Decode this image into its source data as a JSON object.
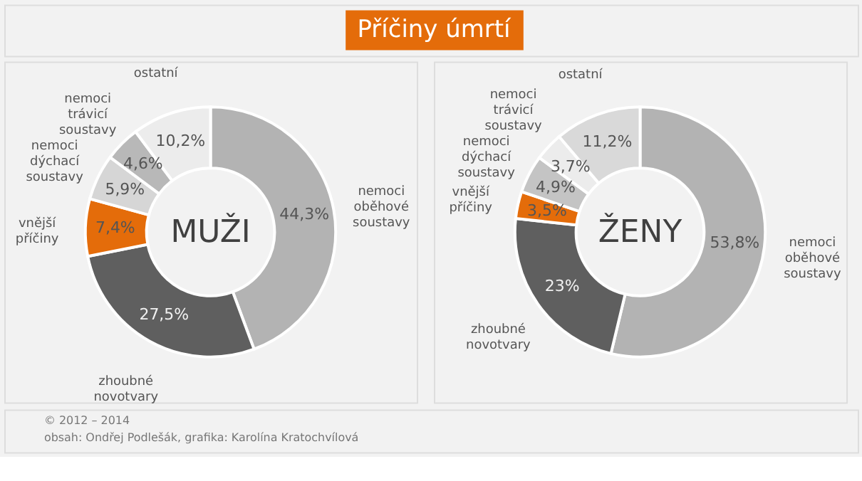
{
  "chart_data": [
    {
      "type": "donut",
      "title": "MUŽI",
      "categories": [
        "nemoci oběhové soustavy",
        "zhoubné novotvary",
        "vnější příčiny",
        "nemoci dýchací soustavy",
        "nemoci trávicí soustavy",
        "ostatní"
      ],
      "values": [
        44.3,
        27.5,
        7.4,
        5.9,
        4.6,
        10.2
      ],
      "value_labels": [
        "44,3%",
        "27,5%",
        "7,4%",
        "5,9%",
        "4,6%",
        "10,2%"
      ],
      "colors": [
        "#b3b3b3",
        "#5f5f5f",
        "#e46c0a",
        "#d6d6d6",
        "#b8b8b8",
        "#ececec"
      ],
      "annotations": [
        "Příčiny úmrtí",
        "© 2012 – 2014",
        "obsah: Ondřej Podlešák, grafika: Karolína Kratochvílová"
      ]
    },
    {
      "type": "donut",
      "title": "ŽENY",
      "categories": [
        "nemoci oběhové soustavy",
        "zhoubné novotvary",
        "vnější příčiny",
        "nemoci dýchací soustavy",
        "nemoci trávicí soustavy",
        "ostatní"
      ],
      "values": [
        53.8,
        23,
        3.5,
        4.9,
        3.7,
        11.2
      ],
      "value_labels": [
        "53,8%",
        "23%",
        "3,5%",
        "4,9%",
        "3,7%",
        "11,2%"
      ],
      "colors": [
        "#b3b3b3",
        "#5f5f5f",
        "#e46c0a",
        "#c4c4c4",
        "#ececec",
        "#d9d9d9"
      ]
    }
  ]
}
